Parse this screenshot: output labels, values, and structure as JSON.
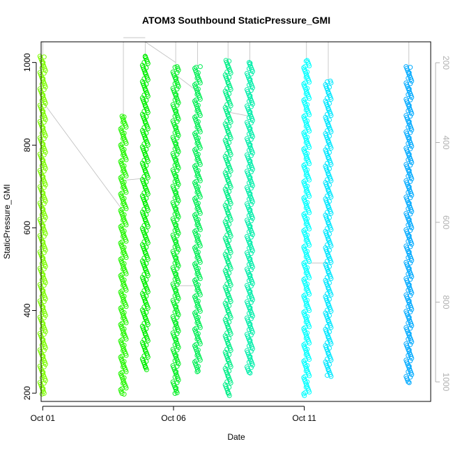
{
  "chart_data": {
    "type": "scatter",
    "title": "ATOM3 Southbound StaticPressure_GMI",
    "xlabel": "Date",
    "ylabel": "StaticPressure_GMI",
    "x_axis": {
      "type": "date",
      "range": [
        "2016-09-30T22:30",
        "2016-10-15T20:00"
      ],
      "ticks": [
        "2016-10-01",
        "2016-10-06",
        "2016-10-11"
      ],
      "tick_labels": [
        "Oct 01",
        "Oct 06",
        "Oct 11"
      ]
    },
    "y_axis": {
      "range": [
        180,
        1050
      ],
      "ticks": [
        200,
        400,
        600,
        800,
        1000
      ],
      "tick_labels": [
        "200",
        "400",
        "600",
        "800",
        "1000"
      ]
    },
    "y2_axis": {
      "label_color": "#b0b0b0",
      "reversed": true,
      "ticks": [
        200,
        400,
        600,
        800,
        1000
      ],
      "tick_labels": [
        "200",
        "400",
        "600",
        "800",
        "1000"
      ]
    },
    "marker": "open-circle",
    "grid": false,
    "legend": "none",
    "series": [
      {
        "x": "2016-10-01T00:00",
        "y_min": 197,
        "y_max": 1015,
        "color": "#7cfc00"
      },
      {
        "x": "2016-10-04T02:00",
        "y_min": 197,
        "y_max": 870,
        "color": "#22f500"
      },
      {
        "x": "2016-10-04T22:00",
        "y_min": 255,
        "y_max": 1015,
        "color": "#00ee00"
      },
      {
        "x": "2016-10-06T02:00",
        "y_min": 197,
        "y_max": 990,
        "color": "#00ee22"
      },
      {
        "x": "2016-10-06T22:00",
        "y_min": 250,
        "y_max": 990,
        "color": "#00ee55"
      },
      {
        "x": "2016-10-08T02:00",
        "y_min": 190,
        "y_max": 1005,
        "color": "#00ee88"
      },
      {
        "x": "2016-10-08T22:00",
        "y_min": 250,
        "y_max": 1000,
        "color": "#00eeaa"
      },
      {
        "x": "2016-10-11T02:00",
        "y_min": 190,
        "y_max": 1005,
        "color": "#00ffff"
      },
      {
        "x": "2016-10-11T22:00",
        "y_min": 240,
        "y_max": 955,
        "color": "#00e8ff"
      },
      {
        "x": "2016-10-15T00:00",
        "y_min": 227,
        "y_max": 990,
        "color": "#00aaff"
      }
    ]
  }
}
